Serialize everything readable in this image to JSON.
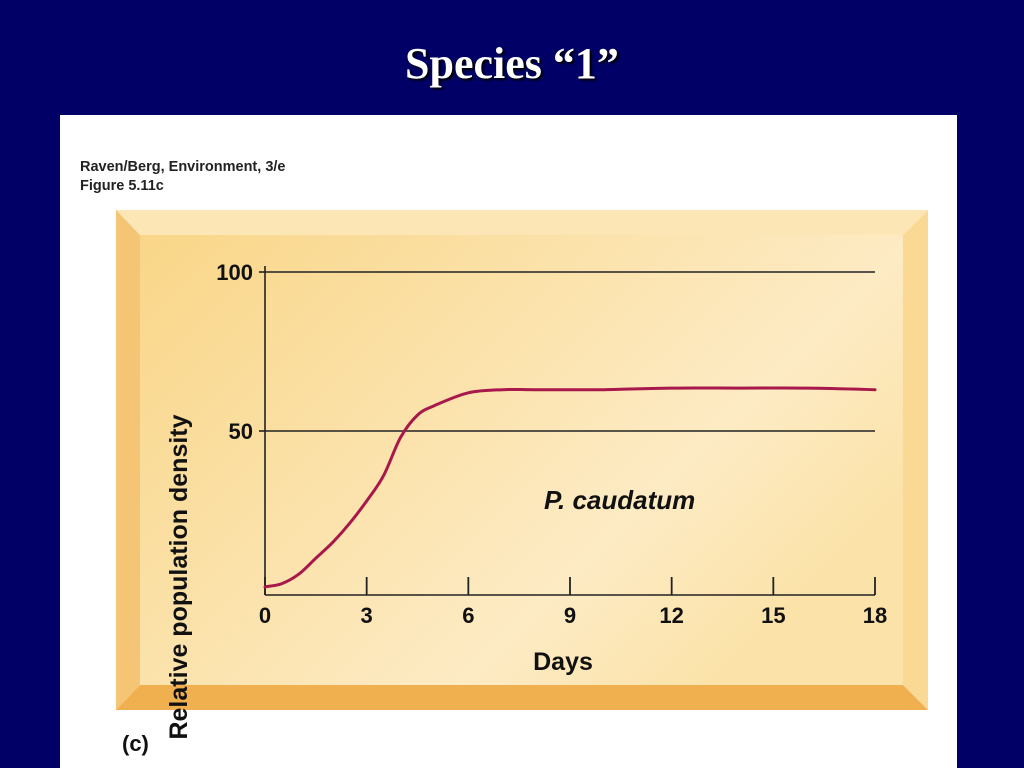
{
  "slide": {
    "title": "Species “1”"
  },
  "figure": {
    "credit_line_1": "Raven/Berg, Environment, 3/e",
    "credit_line_2": "Figure 5.11c",
    "panel_label": "(c)"
  },
  "colors": {
    "background": "#000066",
    "frame_light": "#fbdf9d",
    "frame_dark": "#f2b457",
    "curve": "#a8184a"
  },
  "chart_data": {
    "type": "line",
    "title": "",
    "xlabel": "Days",
    "ylabel": "Relative population density",
    "xlim": [
      0,
      18
    ],
    "ylim": [
      0,
      100
    ],
    "x_ticks": [
      0,
      3,
      6,
      9,
      12,
      15,
      18
    ],
    "y_ticks": [
      50,
      100
    ],
    "gridlines_y": [
      50,
      100
    ],
    "annotation": "P. caudatum",
    "series": [
      {
        "x": [
          0,
          0.5,
          1,
          1.5,
          2,
          2.5,
          3,
          3.5,
          4,
          4.5,
          5,
          6,
          7,
          8,
          10,
          12,
          14,
          16,
          18
        ],
        "y": [
          1,
          2,
          5,
          10,
          15,
          21,
          28,
          36,
          48,
          55,
          58,
          62,
          63,
          63,
          63,
          63.5,
          63.5,
          63.5,
          63
        ]
      }
    ]
  }
}
